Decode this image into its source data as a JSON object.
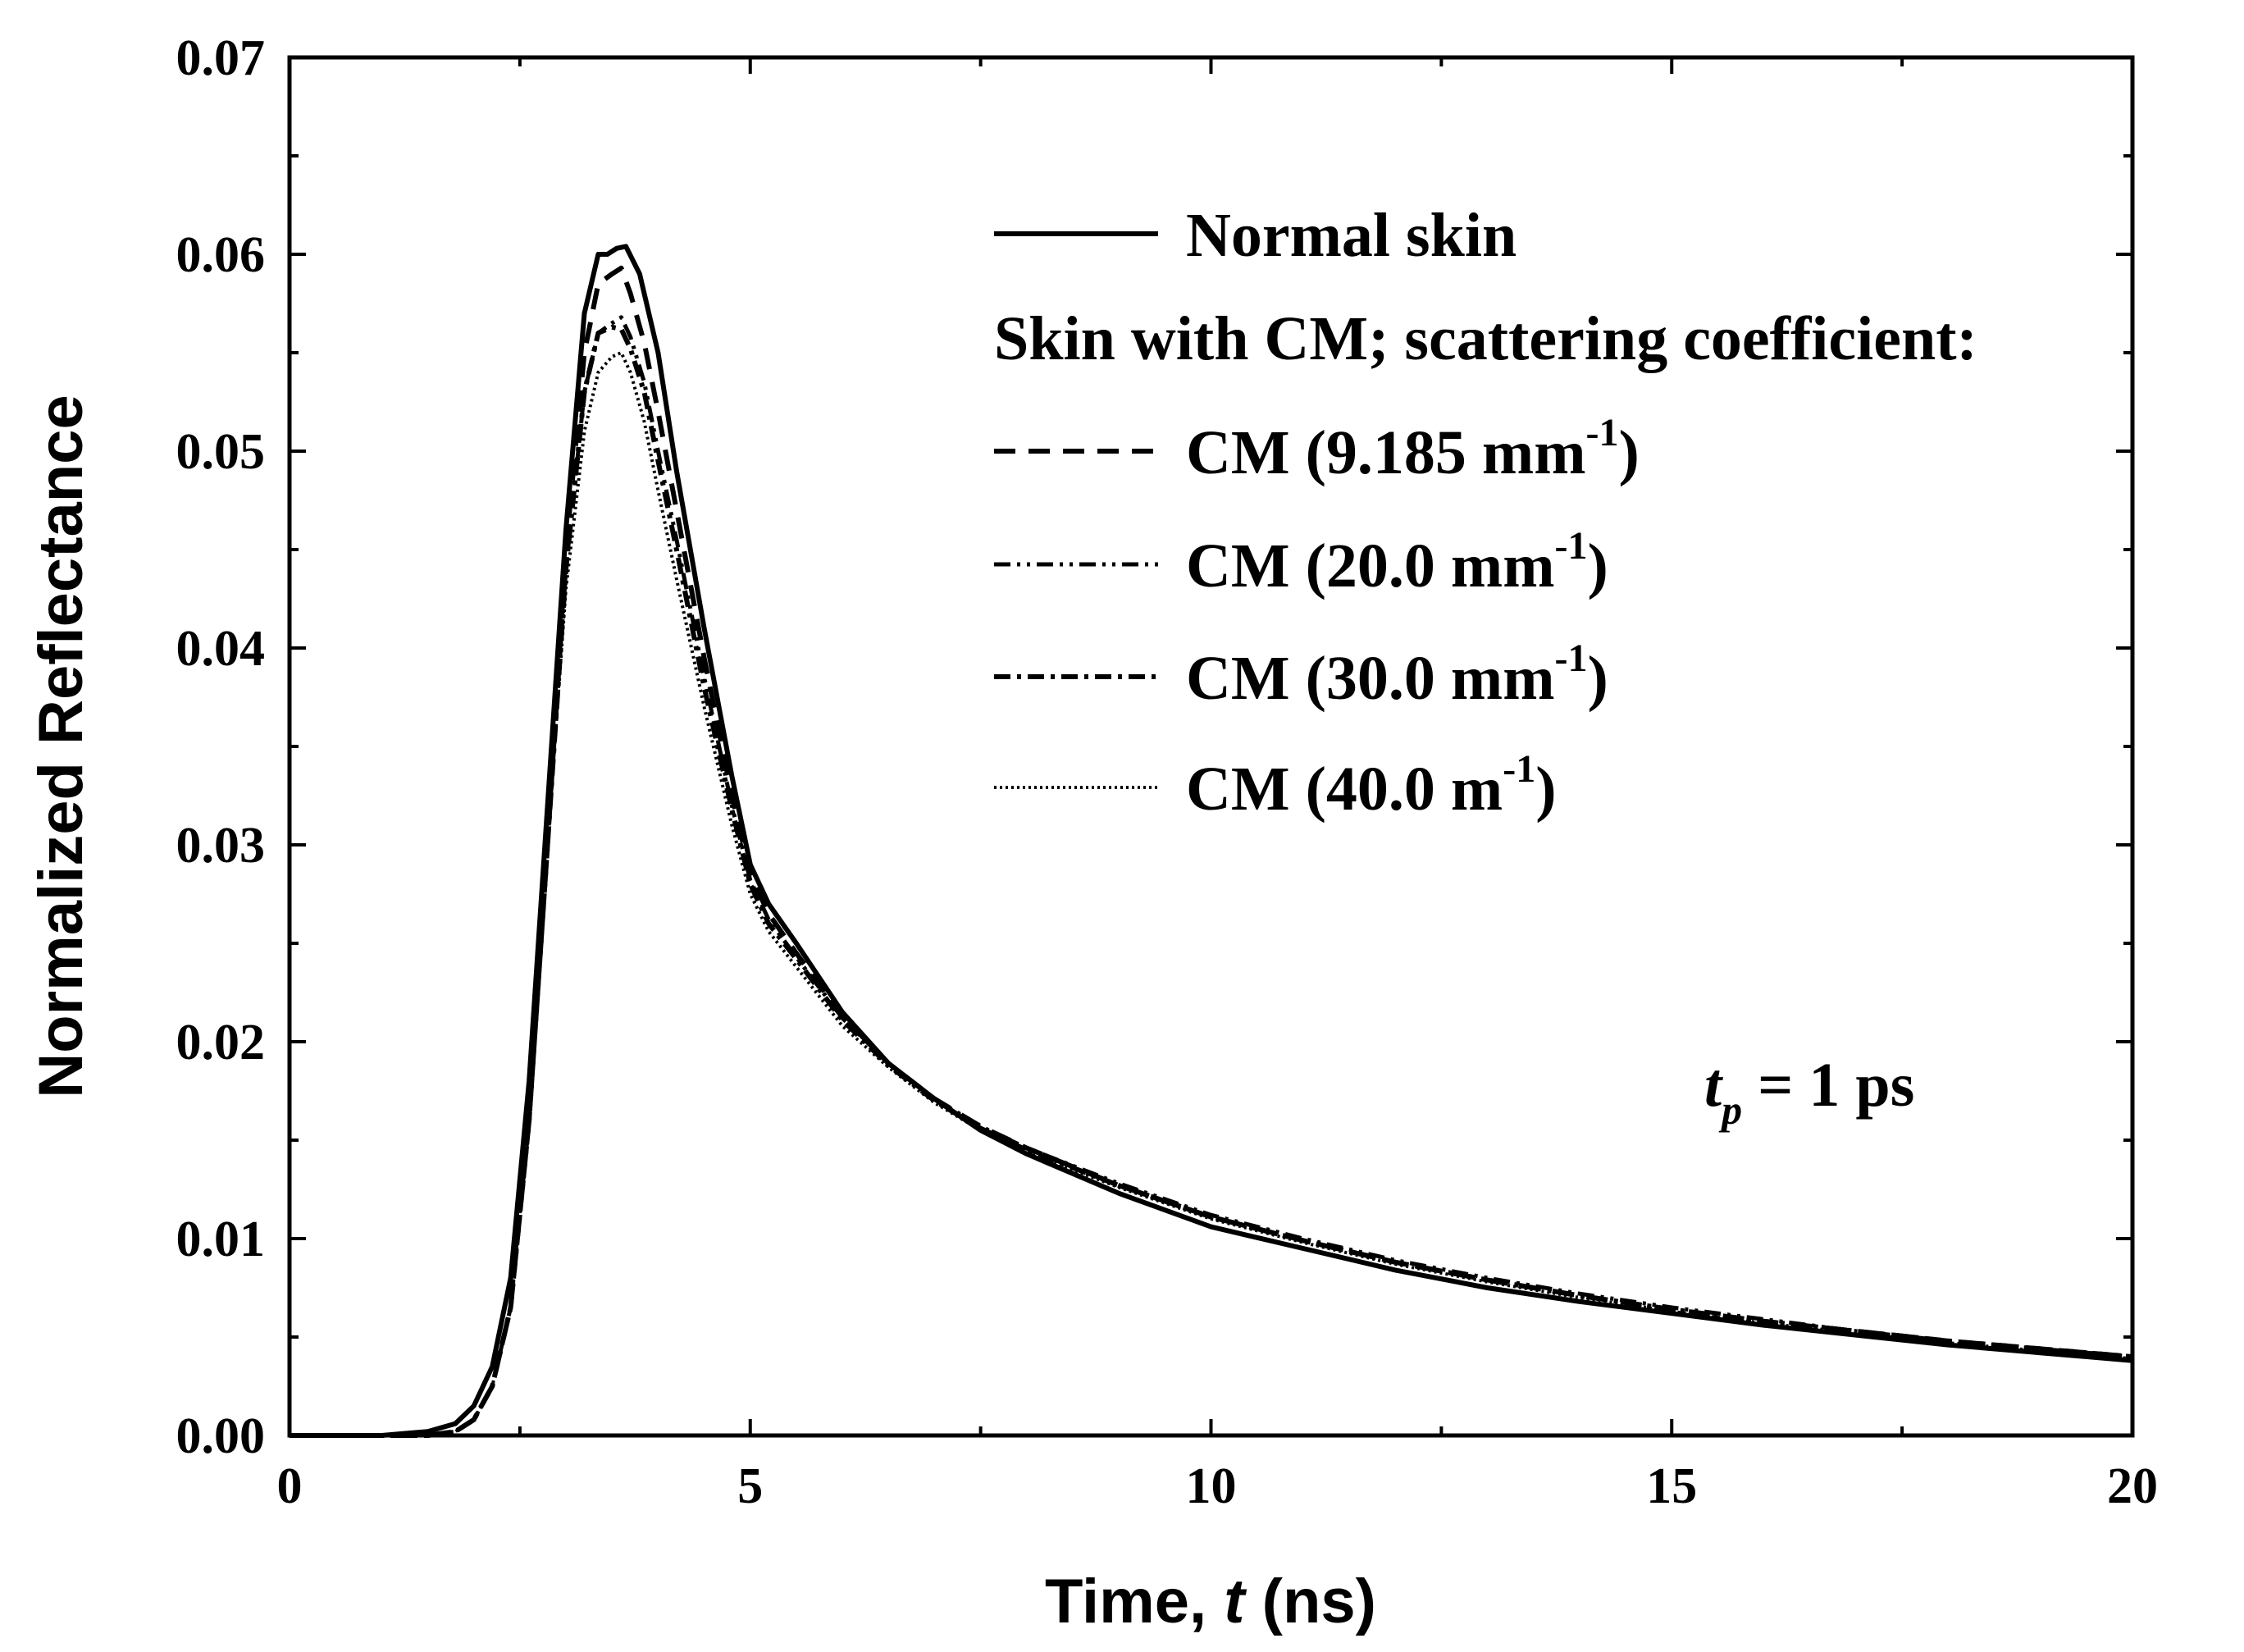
{
  "chart_data": {
    "type": "line",
    "xlabel_main": "Time, ",
    "xlabel_var": "t",
    "xlabel_unit": " (ns)",
    "ylabel": "Normalized Reflectance",
    "xlim": [
      0,
      20
    ],
    "ylim": [
      0,
      0.07
    ],
    "xticks": [
      0,
      5,
      10,
      15,
      20
    ],
    "xtick_labels": [
      "0",
      "5",
      "10",
      "15",
      "20"
    ],
    "yticks": [
      0,
      0.01,
      0.02,
      0.03,
      0.04,
      0.05,
      0.06,
      0.07
    ],
    "ytick_labels": [
      "0.00",
      "0.01",
      "0.02",
      "0.03",
      "0.04",
      "0.05",
      "0.06",
      "0.07"
    ],
    "x_minor_step": 2.5,
    "y_minor_step": 0.005,
    "grid": false,
    "legend_position": "top-right",
    "legend_subheading": "Skin with CM; scattering coefficient:",
    "annotation": {
      "var": "t",
      "sub": "p",
      "rest": " = 1 ps"
    },
    "series": [
      {
        "name": "Normal skin",
        "name_main": "Normal skin",
        "name_sup": "",
        "name_tail": "",
        "style": "solid",
        "x": [
          0,
          1.0,
          1.5,
          1.8,
          2.0,
          2.2,
          2.4,
          2.6,
          2.8,
          3.0,
          3.2,
          3.35,
          3.45,
          3.55,
          3.65,
          3.8,
          4.0,
          4.2,
          4.5,
          4.8,
          5.0,
          5.2,
          5.5,
          6.0,
          6.5,
          7.0,
          7.5,
          8.0,
          9.0,
          10.0,
          11.0,
          12.0,
          13.0,
          14.0,
          15.0,
          16.0,
          17.0,
          18.0,
          19.0,
          20.0
        ],
        "y": [
          0,
          0,
          0.0002,
          0.0006,
          0.0015,
          0.0035,
          0.008,
          0.018,
          0.032,
          0.046,
          0.057,
          0.06,
          0.06,
          0.0603,
          0.0604,
          0.059,
          0.055,
          0.049,
          0.041,
          0.0335,
          0.029,
          0.027,
          0.025,
          0.0215,
          0.0189,
          0.0171,
          0.0155,
          0.0143,
          0.0123,
          0.0106,
          0.0095,
          0.0084,
          0.0075,
          0.0068,
          0.0062,
          0.0056,
          0.0051,
          0.0046,
          0.0042,
          0.0038
        ]
      },
      {
        "name": "CM (9.185 mm-1)",
        "name_main": "CM (9.185  mm",
        "name_sup": "-1",
        "name_tail": ")",
        "style": "dash",
        "x": [
          0,
          1.5,
          1.8,
          2.0,
          2.2,
          2.4,
          2.6,
          2.8,
          3.0,
          3.2,
          3.35,
          3.5,
          3.6,
          3.7,
          3.85,
          4.0,
          4.2,
          4.5,
          4.8,
          5.0,
          5.2,
          5.5,
          6.0,
          6.5,
          7.0,
          7.5,
          8.0,
          9.0,
          10.0,
          11.0,
          12.0,
          13.0,
          14.0,
          15.0,
          16.0,
          17.0,
          18.0,
          19.0,
          20.0
        ],
        "y": [
          0,
          0,
          0.0002,
          0.0008,
          0.0025,
          0.0065,
          0.016,
          0.03,
          0.045,
          0.055,
          0.0585,
          0.059,
          0.0593,
          0.058,
          0.0555,
          0.052,
          0.047,
          0.0395,
          0.0325,
          0.0285,
          0.0265,
          0.0245,
          0.0213,
          0.0189,
          0.0171,
          0.0157,
          0.0146,
          0.0127,
          0.0111,
          0.0099,
          0.0088,
          0.0079,
          0.0071,
          0.0064,
          0.0058,
          0.0053,
          0.0048,
          0.0044,
          0.004
        ]
      },
      {
        "name": "CM (20.0 mm-1)",
        "name_main": "CM (20.0  mm",
        "name_sup": "-1",
        "name_tail": ")",
        "style": "dash-dot-dot",
        "x": [
          0,
          1.5,
          1.8,
          2.0,
          2.2,
          2.4,
          2.6,
          2.8,
          3.0,
          3.2,
          3.35,
          3.5,
          3.6,
          3.7,
          3.85,
          4.0,
          4.2,
          4.5,
          4.8,
          5.0,
          5.2,
          5.5,
          6.0,
          6.5,
          7.0,
          7.5,
          8.0,
          9.0,
          10.0,
          11.0,
          12.0,
          13.0,
          14.0,
          15.0,
          16.0,
          17.0,
          18.0,
          19.0,
          20.0
        ],
        "y": [
          0,
          0,
          0.0002,
          0.0008,
          0.0025,
          0.0065,
          0.016,
          0.03,
          0.044,
          0.053,
          0.056,
          0.0565,
          0.0568,
          0.0558,
          0.0535,
          0.05,
          0.0455,
          0.0385,
          0.032,
          0.0282,
          0.0262,
          0.0243,
          0.0212,
          0.0189,
          0.0171,
          0.0157,
          0.0146,
          0.0128,
          0.0112,
          0.01,
          0.0089,
          0.008,
          0.0072,
          0.0065,
          0.0059,
          0.0053,
          0.0048,
          0.0044,
          0.004
        ]
      },
      {
        "name": "CM (30.0 mm-1)",
        "name_main": "CM (30.0  mm",
        "name_sup": "-1",
        "name_tail": ")",
        "style": "dash-dot",
        "x": [
          0,
          1.5,
          1.8,
          2.0,
          2.2,
          2.4,
          2.6,
          2.8,
          3.0,
          3.2,
          3.35,
          3.5,
          3.6,
          3.7,
          3.85,
          4.0,
          4.2,
          4.5,
          4.8,
          5.0,
          5.2,
          5.5,
          6.0,
          6.5,
          7.0,
          7.5,
          8.0,
          9.0,
          10.0,
          11.0,
          12.0,
          13.0,
          14.0,
          15.0,
          16.0,
          17.0,
          18.0,
          19.0,
          20.0
        ],
        "y": [
          0,
          0,
          0.0002,
          0.0008,
          0.0025,
          0.0065,
          0.016,
          0.03,
          0.044,
          0.053,
          0.056,
          0.0563,
          0.0562,
          0.0552,
          0.053,
          0.0495,
          0.045,
          0.038,
          0.0318,
          0.028,
          0.026,
          0.0242,
          0.0211,
          0.0188,
          0.017,
          0.0156,
          0.0145,
          0.0127,
          0.0111,
          0.0099,
          0.0088,
          0.0079,
          0.0071,
          0.0064,
          0.0058,
          0.0053,
          0.0048,
          0.0044,
          0.004
        ]
      },
      {
        "name": "CM (40.0 m-1)",
        "name_main": "CM (40.0  m",
        "name_sup": "-1",
        "name_tail": ")",
        "style": "dot",
        "x": [
          0,
          1.5,
          1.8,
          2.0,
          2.2,
          2.4,
          2.6,
          2.8,
          3.0,
          3.2,
          3.35,
          3.5,
          3.6,
          3.7,
          3.85,
          4.0,
          4.2,
          4.5,
          4.8,
          5.0,
          5.2,
          5.5,
          6.0,
          6.5,
          7.0,
          7.5,
          8.0,
          9.0,
          10.0,
          11.0,
          12.0,
          13.0,
          14.0,
          15.0,
          16.0,
          17.0,
          18.0,
          19.0,
          20.0
        ],
        "y": [
          0,
          0,
          0.0002,
          0.0008,
          0.0025,
          0.0065,
          0.016,
          0.03,
          0.043,
          0.051,
          0.054,
          0.0548,
          0.055,
          0.054,
          0.0515,
          0.048,
          0.0435,
          0.037,
          0.031,
          0.0275,
          0.0256,
          0.0238,
          0.0208,
          0.0187,
          0.0169,
          0.0155,
          0.0144,
          0.0126,
          0.011,
          0.0098,
          0.0087,
          0.0078,
          0.007,
          0.0063,
          0.0057,
          0.0052,
          0.0047,
          0.0043,
          0.0039
        ]
      }
    ]
  }
}
